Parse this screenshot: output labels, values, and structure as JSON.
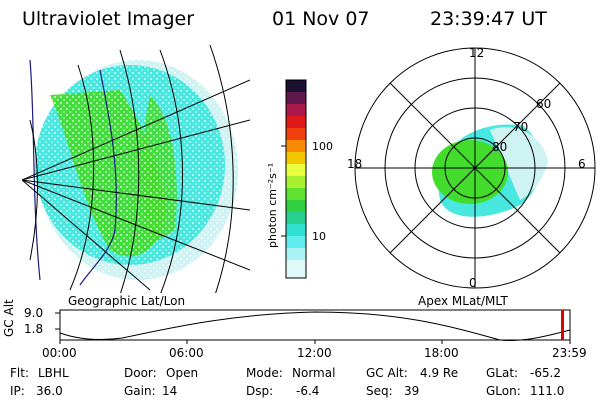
{
  "header": {
    "title": "Ultraviolet Imager",
    "date": "01 Nov 07",
    "time": "23:39:47 UT"
  },
  "colorbar": {
    "unit_label": "photon cm⁻²s⁻¹",
    "ticks": [
      "100",
      "10"
    ]
  },
  "left_map": {
    "caption": "Geographic Lat/Lon"
  },
  "right_map": {
    "caption": "Apex MLat/MLT",
    "mlt_labels": {
      "top": "12",
      "left": "18",
      "right": "6",
      "bottom": "0"
    },
    "lat_labels": [
      "60",
      "70",
      "80"
    ]
  },
  "altitude_plot": {
    "ylabel": "GC Alt",
    "yticks": [
      "9.0",
      "1.8"
    ],
    "xticks": [
      "00:00",
      "06:00",
      "12:00",
      "18:00",
      "23:59"
    ]
  },
  "status": {
    "row1": [
      {
        "label": "Flt:",
        "value": "LBHL"
      },
      {
        "label": "Door:",
        "value": "Open"
      },
      {
        "label": "Mode:",
        "value": "Normal"
      },
      {
        "label": "GC Alt:",
        "value": "4.9 Re"
      },
      {
        "label": "GLat:",
        "value": "-65.2"
      }
    ],
    "row2": [
      {
        "label": "IP:",
        "value": "36.0"
      },
      {
        "label": "Gain:",
        "value": "14"
      },
      {
        "label": "Dsp:",
        "value": "-6.4"
      },
      {
        "label": "Seq:",
        "value": "39"
      },
      {
        "label": "GLon:",
        "value": "111.0"
      }
    ]
  },
  "colors": {
    "cyan": "#48e8e0",
    "green": "#44dc2c",
    "pale": "#cff2f2",
    "marker": "#e00000"
  }
}
